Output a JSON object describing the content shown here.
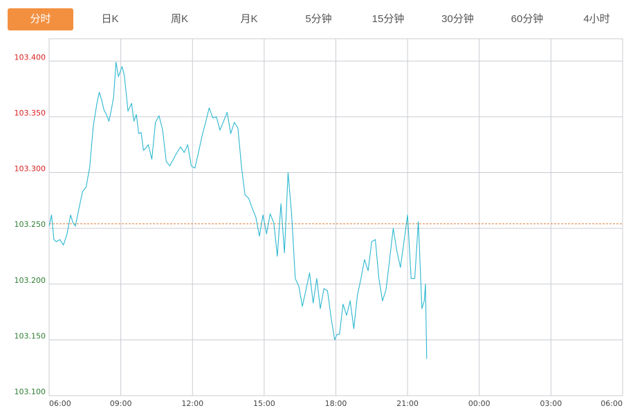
{
  "tabs": [
    {
      "label": "分时",
      "active": true
    },
    {
      "label": "日K",
      "active": false
    },
    {
      "label": "周K",
      "active": false
    },
    {
      "label": "月K",
      "active": false
    },
    {
      "label": "5分钟",
      "active": false
    },
    {
      "label": "15分钟",
      "active": false
    },
    {
      "label": "30分钟",
      "active": false
    },
    {
      "label": "60分钟",
      "active": false
    },
    {
      "label": "4小时",
      "active": false
    }
  ],
  "colors": {
    "accent": "#f39040",
    "line": "#2bb7d0",
    "up": "#d91e1e",
    "down": "#2e7d32",
    "prev_close_line": "#e0803a",
    "grid": "#c9ccd2"
  },
  "chart_data": {
    "type": "line",
    "title": "",
    "xlabel": "",
    "ylabel": "",
    "prev_close": 103.254,
    "ylim": [
      103.1,
      103.42
    ],
    "y_ticks": [
      103.1,
      103.15,
      103.2,
      103.25,
      103.3,
      103.35,
      103.4
    ],
    "y_tick_labels": [
      "103.100",
      "103.150",
      "103.200",
      "103.250",
      "103.300",
      "103.350",
      "103.400"
    ],
    "x_ticks": [
      "06:00",
      "09:00",
      "12:00",
      "15:00",
      "18:00",
      "21:00",
      "00:00",
      "03:00",
      "06:00"
    ],
    "x_range_hours": [
      6,
      30
    ],
    "grid": true,
    "series": [
      {
        "x_hours": [
          6.0,
          6.1,
          6.2,
          6.3,
          6.45,
          6.6,
          6.75,
          6.9,
          7.0,
          7.1,
          7.25,
          7.4,
          7.55,
          7.7,
          7.85,
          8.0,
          8.1,
          8.2,
          8.3,
          8.4,
          8.5,
          8.6,
          8.7,
          8.8,
          8.9,
          9.0,
          9.05,
          9.15,
          9.3,
          9.45,
          9.55,
          9.65,
          9.75,
          9.85,
          9.95,
          10.05,
          10.15,
          10.3,
          10.45,
          10.6,
          10.75,
          10.9,
          11.05,
          11.2,
          11.35,
          11.5,
          11.65,
          11.8,
          11.95,
          12.1,
          12.25,
          12.4,
          12.55,
          12.7,
          12.85,
          13.0,
          13.15,
          13.3,
          13.45,
          13.6,
          13.75,
          13.9,
          14.05,
          14.2,
          14.35,
          14.5,
          14.65,
          14.8,
          14.95,
          15.1,
          15.25,
          15.4,
          15.55,
          15.7,
          15.85,
          16.0,
          16.15,
          16.3,
          16.45,
          16.6,
          16.75,
          16.9,
          17.05,
          17.2,
          17.35,
          17.5,
          17.65,
          17.8,
          17.95,
          18.05,
          18.15,
          18.3,
          18.45,
          18.6,
          18.75,
          18.9,
          19.05,
          19.2,
          19.35,
          19.5,
          19.65,
          19.8,
          19.95,
          20.1,
          20.25,
          20.4,
          20.55,
          20.7,
          20.85,
          21.0,
          21.15,
          21.3,
          21.45,
          21.6,
          21.7,
          21.75,
          21.8
        ],
        "values": [
          103.252,
          103.262,
          103.24,
          103.238,
          103.24,
          103.235,
          103.245,
          103.262,
          103.255,
          103.252,
          103.268,
          103.283,
          103.287,
          103.305,
          103.342,
          103.362,
          103.372,
          103.365,
          103.356,
          103.352,
          103.346,
          103.356,
          103.368,
          103.399,
          103.386,
          103.392,
          103.395,
          103.387,
          103.355,
          103.362,
          103.346,
          103.352,
          103.335,
          103.336,
          103.32,
          103.322,
          103.325,
          103.312,
          103.345,
          103.351,
          103.338,
          103.31,
          103.306,
          103.312,
          103.318,
          103.323,
          103.318,
          103.325,
          103.306,
          103.304,
          103.318,
          103.333,
          103.345,
          103.358,
          103.349,
          103.35,
          103.338,
          103.346,
          103.354,
          103.335,
          103.345,
          103.34,
          103.305,
          103.28,
          103.277,
          103.268,
          103.26,
          103.243,
          103.262,
          103.245,
          103.263,
          103.255,
          103.225,
          103.272,
          103.228,
          103.3,
          103.262,
          103.205,
          103.198,
          103.18,
          103.195,
          103.21,
          103.183,
          103.205,
          103.178,
          103.196,
          103.194,
          103.17,
          103.15,
          103.155,
          103.155,
          103.182,
          103.172,
          103.185,
          103.16,
          103.19,
          103.205,
          103.222,
          103.212,
          103.238,
          103.24,
          103.205,
          103.185,
          103.195,
          103.222,
          103.25,
          103.23,
          103.215,
          103.238,
          103.262,
          103.205,
          103.205,
          103.256,
          103.178,
          103.185,
          103.2,
          103.133
        ]
      }
    ]
  }
}
